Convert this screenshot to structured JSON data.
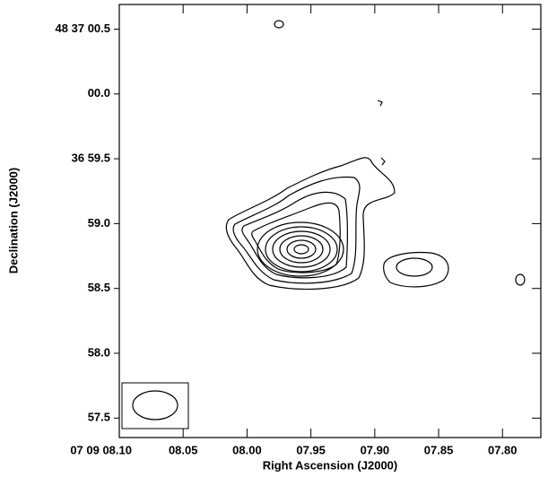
{
  "chart_data": {
    "type": "contour",
    "x_label": "Right Ascension (J2000)",
    "y_label": "Declination (J2000)",
    "xlim": [
      8.1,
      7.77
    ],
    "ylim": [
      57.35,
      60.69
    ],
    "xticks": [
      {
        "value": 8.1,
        "label": "07 09 08.10"
      },
      {
        "value": 8.05,
        "label": "08.05"
      },
      {
        "value": 8.0,
        "label": "08.00"
      },
      {
        "value": 7.95,
        "label": "07.95"
      },
      {
        "value": 7.9,
        "label": "07.90"
      },
      {
        "value": 7.85,
        "label": "07.85"
      },
      {
        "value": 7.8,
        "label": "07.80"
      }
    ],
    "yticks": [
      57.5,
      {
        "value": 58.0,
        "label": "58.0"
      },
      58.5,
      {
        "value": 59.0,
        "label": "59.0"
      },
      {
        "value": 59.5,
        "label": "36 59.5"
      },
      {
        "value": 60.0,
        "label": "00.0"
      },
      {
        "value": 60.5,
        "label": "48 37 00.5"
      }
    ]
  }
}
